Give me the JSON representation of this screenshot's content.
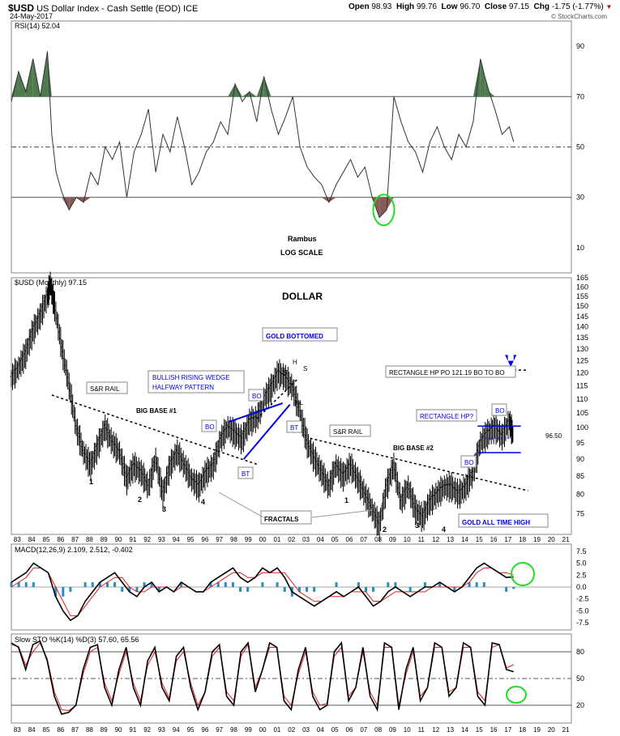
{
  "header": {
    "symbol": "$USD",
    "name": "US Dollar Index - Cash Settle (EOD)",
    "exchange": "ICE",
    "date": "24-May-2017",
    "open_label": "Open",
    "open": "98.93",
    "high_label": "High",
    "high": "99.76",
    "low_label": "Low",
    "low": "96.70",
    "close_label": "Close",
    "close": "97.15",
    "chg_label": "Chg",
    "chg": "-1.75 (-1.77%)",
    "copyright": "© StockCharts.com"
  },
  "colors": {
    "price": "#000000",
    "signal": "#e02020",
    "histogram": "#2a8bc2",
    "annotation_blue": "#0000e0",
    "circle_green": "#22dd22",
    "rsi_overbought": "#4f7a4f",
    "rsi_oversold": "#8a5a5a"
  },
  "chart_data": [
    {
      "type": "line",
      "panel": "rsi",
      "title": "RSI(14) 52.04",
      "ylim": [
        0,
        100
      ],
      "y_ticks": [
        90,
        70,
        50,
        30,
        10
      ],
      "ref_lines": [
        70,
        50,
        30
      ],
      "x": [
        1982.5,
        1983,
        1983.5,
        1984,
        1984.5,
        1985,
        1985.3,
        1985.6,
        1986,
        1986.5,
        1987,
        1987.5,
        1988,
        1988.5,
        1989,
        1989.5,
        1990,
        1990.5,
        1991,
        1991.5,
        1992,
        1992.5,
        1993,
        1993.5,
        1994,
        1994.5,
        1995,
        1995.5,
        1996,
        1996.5,
        1997,
        1997.5,
        1998,
        1998.5,
        1999,
        1999.5,
        2000,
        2000.5,
        2001,
        2001.5,
        2002,
        2002.5,
        2003,
        2003.5,
        2004,
        2004.5,
        2005,
        2005.5,
        2006,
        2006.5,
        2007,
        2007.5,
        2008,
        2008.5,
        2009,
        2009.5,
        2010,
        2010.5,
        2011,
        2011.5,
        2012,
        2012.5,
        2013,
        2013.5,
        2014,
        2014.5,
        2015,
        2015.3,
        2015.6,
        2016,
        2016.5,
        2017,
        2017.3
      ],
      "values": [
        68,
        80,
        72,
        85,
        70,
        88,
        55,
        40,
        32,
        25,
        30,
        28,
        40,
        35,
        50,
        45,
        52,
        30,
        48,
        55,
        65,
        40,
        55,
        48,
        62,
        50,
        35,
        40,
        48,
        52,
        60,
        55,
        75,
        68,
        72,
        60,
        78,
        65,
        55,
        62,
        70,
        50,
        42,
        38,
        35,
        28,
        35,
        40,
        45,
        38,
        42,
        30,
        22,
        25,
        70,
        60,
        52,
        48,
        40,
        52,
        58,
        50,
        45,
        55,
        50,
        60,
        85,
        78,
        72,
        65,
        55,
        58,
        52
      ],
      "annotations": [
        "Rambus",
        "LOG SCALE"
      ]
    },
    {
      "type": "line",
      "panel": "price",
      "title": "$USD (Monthly) 97.15",
      "chart_title": "DOLLAR",
      "ylim": [
        70,
        165
      ],
      "y_ticks": [
        165,
        160,
        155,
        150,
        145,
        140,
        135,
        130,
        125,
        120,
        115,
        110,
        105,
        100,
        95,
        90,
        85,
        80,
        75
      ],
      "x_ticks": [
        "83",
        "84",
        "85",
        "86",
        "87",
        "88",
        "89",
        "90",
        "91",
        "92",
        "93",
        "94",
        "95",
        "96",
        "97",
        "98",
        "99",
        "00",
        "01",
        "02",
        "03",
        "04",
        "05",
        "06",
        "07",
        "08",
        "09",
        "10",
        "11",
        "12",
        "13",
        "14",
        "15",
        "16",
        "17",
        "18",
        "19",
        "20",
        "21"
      ],
      "x": [
        1982.5,
        1983,
        1983.5,
        1984,
        1984.5,
        1985,
        1985.2,
        1985.5,
        1986,
        1986.5,
        1987,
        1987.5,
        1988,
        1988.5,
        1989,
        1989.5,
        1990,
        1990.5,
        1991,
        1991.5,
        1992,
        1992.5,
        1993,
        1993.5,
        1994,
        1994.5,
        1995,
        1995.5,
        1996,
        1996.5,
        1997,
        1997.5,
        1998,
        1998.5,
        1999,
        1999.5,
        2000,
        2000.5,
        2001,
        2001.5,
        2002,
        2002.5,
        2003,
        2003.5,
        2004,
        2004.5,
        2005,
        2005.5,
        2006,
        2006.5,
        2007,
        2007.5,
        2008,
        2008.5,
        2009,
        2009.5,
        2010,
        2010.5,
        2011,
        2011.5,
        2012,
        2012.5,
        2013,
        2013.5,
        2014,
        2014.5,
        2015,
        2015.5,
        2016,
        2016.5,
        2017,
        2017.3
      ],
      "values": [
        118,
        122,
        128,
        138,
        145,
        155,
        162,
        150,
        130,
        115,
        100,
        92,
        88,
        94,
        100,
        95,
        92,
        84,
        88,
        86,
        82,
        90,
        80,
        88,
        92,
        88,
        84,
        82,
        86,
        88,
        96,
        100,
        98,
        96,
        102,
        103,
        110,
        114,
        120,
        118,
        114,
        105,
        95,
        90,
        86,
        82,
        88,
        85,
        88,
        84,
        80,
        76,
        72,
        82,
        88,
        78,
        82,
        76,
        74,
        78,
        80,
        82,
        82,
        80,
        82,
        86,
        95,
        98,
        100,
        97,
        102,
        97.15
      ],
      "labels": [
        "1",
        "2",
        "3",
        "4",
        "1",
        "2",
        "3",
        "4",
        "S",
        "H",
        "S",
        "NL",
        "BT",
        "BT",
        "BO",
        "BO",
        "BO",
        "BO"
      ],
      "annotations": [
        "GOLD BOTTOMED",
        "BULLISH RISING WEDGE",
        "HALFWAY PATTERN",
        "S&R RAIL",
        "S&R RAIL",
        "BIG BASE #1",
        "BIG BASE #2",
        "FRACTALS",
        "RECTANGLE HP PO 121.19 BO TO BO",
        "RECTANGLE HP?",
        "GOLD ALL TIME HIGH",
        "96.50"
      ],
      "lines": {
        "rectangle_top": 100.5,
        "rectangle_bottom": 92,
        "target": 121.19
      }
    },
    {
      "type": "line",
      "panel": "macd",
      "title": "MACD(12,26,9) 2.109, 2.512, -0.402",
      "series": [
        {
          "name": "MACD",
          "values": [
            1,
            2,
            3,
            5,
            4,
            3,
            -2,
            -5,
            -7,
            -6,
            -3,
            -1,
            1,
            2,
            3,
            1,
            -1,
            -2,
            0,
            1,
            -1,
            0,
            -1,
            1,
            0,
            -1,
            -1,
            1,
            2,
            3,
            4,
            2,
            1,
            2,
            4,
            3,
            4,
            2,
            -1,
            -2,
            -3,
            -4,
            -3,
            -2,
            -1,
            -2,
            -1,
            0,
            -2,
            -4,
            -3,
            -1,
            0,
            -1,
            -2,
            -1,
            0,
            0,
            1,
            0,
            -1,
            0,
            2,
            4,
            5,
            4,
            3,
            2,
            2.109
          ]
        },
        {
          "name": "Signal",
          "values": [
            0,
            1,
            2,
            4,
            4,
            3,
            0,
            -3,
            -6,
            -6,
            -4,
            -2,
            0,
            1,
            2,
            2,
            0,
            -1,
            -1,
            0,
            0,
            0,
            -1,
            0,
            0,
            -1,
            -1,
            0,
            1,
            2,
            3,
            3,
            2,
            2,
            3,
            3,
            3,
            3,
            1,
            -1,
            -2,
            -3,
            -3,
            -2,
            -2,
            -2,
            -1,
            -1,
            -1,
            -3,
            -3,
            -2,
            -1,
            -1,
            -1,
            -1,
            -1,
            0,
            0,
            0,
            0,
            0,
            1,
            3,
            4,
            4,
            3,
            3,
            2.512
          ]
        }
      ],
      "y_ticks": [
        7.5,
        5.0,
        2.5,
        0.0,
        -2.5,
        -5.0,
        -7.5
      ]
    },
    {
      "type": "line",
      "panel": "stochastic",
      "title": "Slow STO %K(14) %D(3) 57.60, 65.56",
      "series": [
        {
          "name": "%K",
          "values": [
            90,
            85,
            60,
            88,
            92,
            70,
            30,
            10,
            12,
            20,
            60,
            85,
            88,
            40,
            20,
            60,
            85,
            40,
            20,
            70,
            85,
            40,
            25,
            75,
            85,
            40,
            15,
            35,
            80,
            88,
            30,
            20,
            80,
            90,
            35,
            60,
            90,
            85,
            25,
            15,
            60,
            85,
            30,
            15,
            20,
            80,
            90,
            25,
            40,
            85,
            30,
            15,
            90,
            85,
            15,
            60,
            85,
            25,
            40,
            90,
            85,
            30,
            40,
            90,
            85,
            30,
            20,
            90,
            88,
            60,
            57.6
          ]
        },
        {
          "name": "%D",
          "values": [
            88,
            86,
            65,
            80,
            90,
            72,
            35,
            15,
            14,
            20,
            55,
            80,
            85,
            45,
            25,
            55,
            80,
            45,
            25,
            65,
            80,
            45,
            28,
            70,
            80,
            45,
            20,
            35,
            75,
            85,
            35,
            25,
            75,
            88,
            40,
            60,
            85,
            85,
            30,
            20,
            55,
            80,
            35,
            20,
            22,
            75,
            85,
            30,
            40,
            80,
            35,
            20,
            85,
            85,
            20,
            55,
            80,
            30,
            40,
            85,
            85,
            35,
            40,
            85,
            85,
            35,
            25,
            85,
            88,
            62,
            65.56
          ]
        }
      ],
      "y_ticks": [
        80,
        50,
        20
      ],
      "ref_lines": [
        80,
        50,
        20
      ]
    }
  ]
}
